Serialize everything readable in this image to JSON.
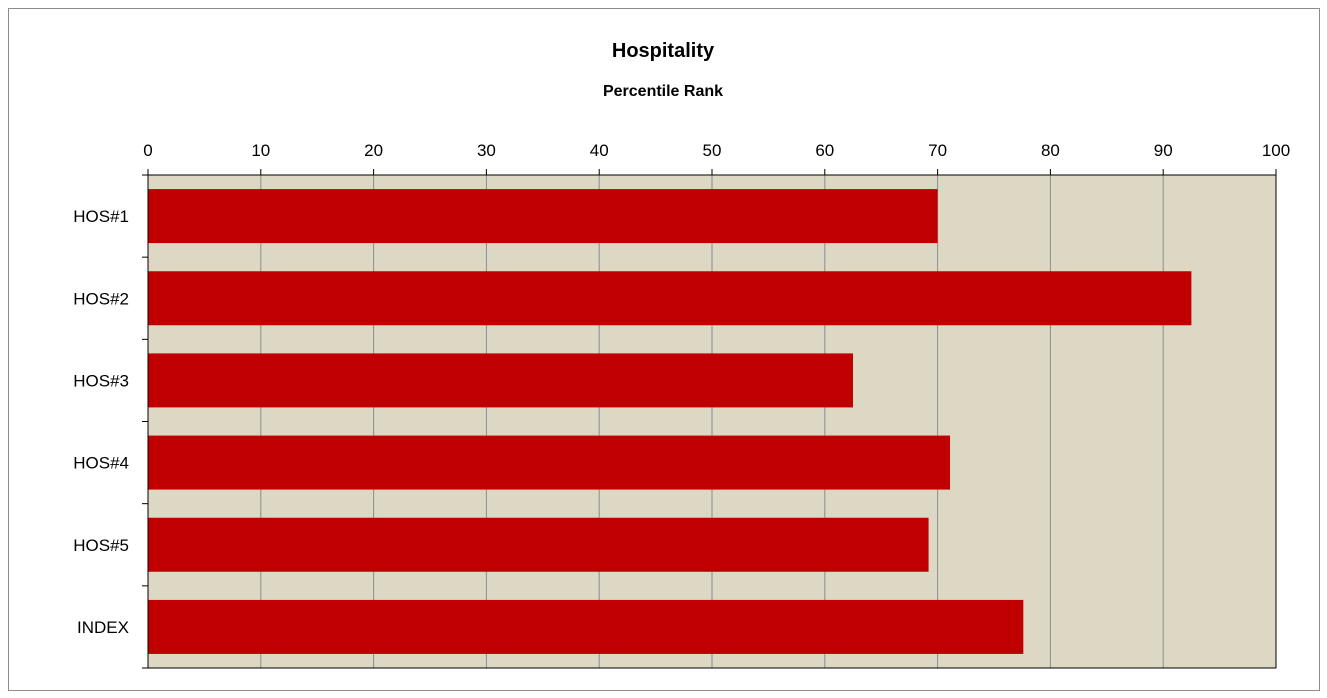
{
  "colors": {
    "bar": "#c00000",
    "plot_background": "#ddd8c4",
    "gridline": "#8c8c8c",
    "axis": "#000000"
  },
  "chart_data": {
    "type": "bar",
    "orientation": "horizontal",
    "title": "Hospitality",
    "subtitle": "Percentile Rank",
    "categories": [
      "HOS#1",
      "HOS#2",
      "HOS#3",
      "HOS#4",
      "HOS#5",
      "INDEX"
    ],
    "values": [
      70,
      92.5,
      62.5,
      71.1,
      69.2,
      77.6
    ],
    "xlim": [
      0,
      100
    ],
    "x_ticks": [
      0,
      10,
      20,
      30,
      40,
      50,
      60,
      70,
      80,
      90,
      100
    ],
    "x_axis_position": "top",
    "grid": true,
    "legend": "none"
  }
}
